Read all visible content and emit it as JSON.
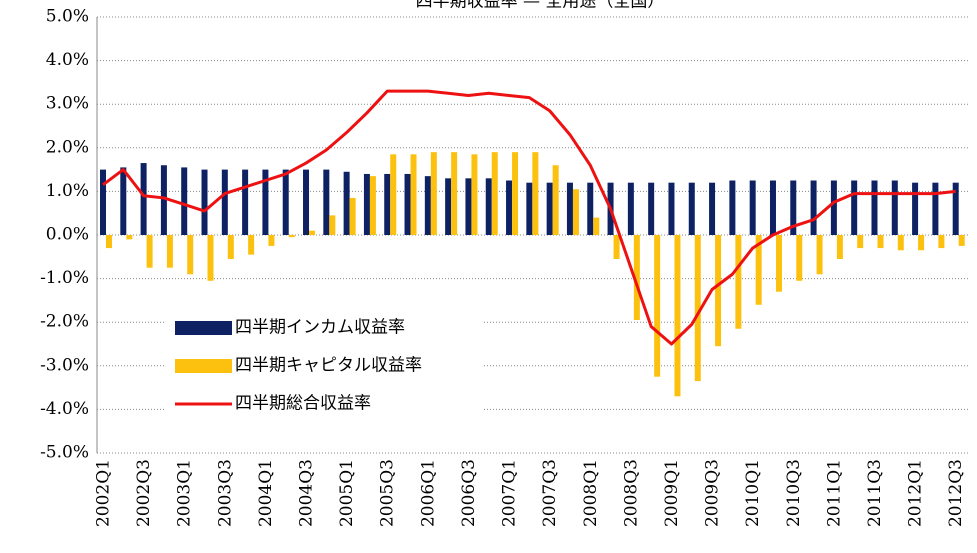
{
  "chart_data": {
    "type": "bar_line",
    "title": "四半期収益率 — 全用途（全国）",
    "categories": [
      "2002Q1",
      null,
      "2002Q3",
      null,
      "2003Q1",
      null,
      "2003Q3",
      null,
      "2004Q1",
      null,
      "2004Q3",
      null,
      "2005Q1",
      null,
      "2005Q3",
      null,
      "2006Q1",
      null,
      "2006Q3",
      null,
      "2007Q1",
      null,
      "2007Q3",
      null,
      "2008Q1",
      null,
      "2008Q3",
      null,
      "2009Q1",
      null,
      "2009Q3",
      null,
      "2010Q1",
      null,
      "2010Q3",
      null,
      "2011Q1",
      null,
      "2011Q3",
      null,
      "2012Q1",
      null,
      "2012Q3"
    ],
    "series": [
      {
        "name": "四半期インカム収益率",
        "type": "bar",
        "color": "#0d2163",
        "values": [
          1.5,
          1.55,
          1.65,
          1.6,
          1.55,
          1.5,
          1.5,
          1.5,
          1.5,
          1.5,
          1.5,
          1.5,
          1.45,
          1.4,
          1.4,
          1.4,
          1.35,
          1.3,
          1.3,
          1.3,
          1.25,
          1.2,
          1.2,
          1.2,
          1.2,
          1.2,
          1.2,
          1.2,
          1.2,
          1.2,
          1.2,
          1.25,
          1.25,
          1.25,
          1.25,
          1.25,
          1.25,
          1.25,
          1.25,
          1.25,
          1.2,
          1.2,
          1.2
        ]
      },
      {
        "name": "四半期キャピタル収益率",
        "type": "bar",
        "color": "#fcc10f",
        "values": [
          -0.3,
          -0.1,
          -0.75,
          -0.75,
          -0.9,
          -1.05,
          -0.55,
          -0.45,
          -0.25,
          -0.05,
          0.1,
          0.45,
          0.85,
          1.35,
          1.85,
          1.85,
          1.9,
          1.9,
          1.85,
          1.9,
          1.9,
          1.9,
          1.6,
          1.05,
          0.4,
          -0.55,
          -1.95,
          -3.25,
          -3.7,
          -3.35,
          -2.55,
          -2.15,
          -1.6,
          -1.3,
          -1.05,
          -0.9,
          -0.55,
          -0.3,
          -0.3,
          -0.35,
          -0.35,
          -0.3,
          -0.25
        ]
      },
      {
        "name": "四半期総合収益率",
        "type": "line",
        "color": "#ee1111",
        "values": [
          1.15,
          1.5,
          0.9,
          0.85,
          0.7,
          0.55,
          0.95,
          1.1,
          1.25,
          1.4,
          1.65,
          1.95,
          2.35,
          2.8,
          3.3,
          3.3,
          3.3,
          3.25,
          3.2,
          3.25,
          3.2,
          3.15,
          2.85,
          2.3,
          1.6,
          0.6,
          -0.75,
          -2.1,
          -2.5,
          -2.05,
          -1.25,
          -0.9,
          -0.3,
          0.0,
          0.2,
          0.35,
          0.75,
          0.95,
          0.95,
          0.95,
          0.95,
          0.95,
          1.0
        ]
      }
    ],
    "ylim": [
      -5,
      5
    ],
    "yticks": [
      {
        "value": -5,
        "label": "-5.0%"
      },
      {
        "value": -4,
        "label": "-4.0%"
      },
      {
        "value": -3,
        "label": "-3.0%"
      },
      {
        "value": -2,
        "label": "-2.0%"
      },
      {
        "value": -1,
        "label": "-1.0%"
      },
      {
        "value": 0,
        "label": "0.0%"
      },
      {
        "value": 1,
        "label": "1.0%"
      },
      {
        "value": 2,
        "label": "2.0%"
      },
      {
        "value": 3,
        "label": "3.0%"
      },
      {
        "value": 4,
        "label": "4.0%"
      },
      {
        "value": 5,
        "label": "5.0%"
      }
    ],
    "grid": true
  }
}
